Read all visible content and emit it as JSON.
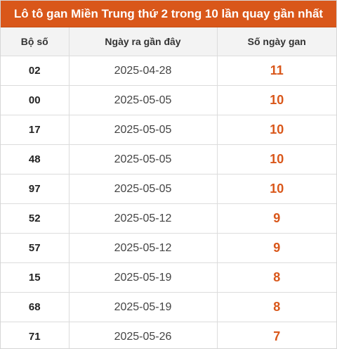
{
  "title": "Lô tô gan Miền Trung thứ 2 trong 10 lần quay gần nhất",
  "colors": {
    "header_bg": "#d9571a",
    "highlight": "#d9571a"
  },
  "table": {
    "headers": [
      "Bộ số",
      "Ngày ra gần đây",
      "Số ngày gan"
    ],
    "rows": [
      {
        "number": "02",
        "date": "2025-04-28",
        "days": "11"
      },
      {
        "number": "00",
        "date": "2025-05-05",
        "days": "10"
      },
      {
        "number": "17",
        "date": "2025-05-05",
        "days": "10"
      },
      {
        "number": "48",
        "date": "2025-05-05",
        "days": "10"
      },
      {
        "number": "97",
        "date": "2025-05-05",
        "days": "10"
      },
      {
        "number": "52",
        "date": "2025-05-12",
        "days": "9"
      },
      {
        "number": "57",
        "date": "2025-05-12",
        "days": "9"
      },
      {
        "number": "15",
        "date": "2025-05-19",
        "days": "8"
      },
      {
        "number": "68",
        "date": "2025-05-19",
        "days": "8"
      },
      {
        "number": "71",
        "date": "2025-05-26",
        "days": "7"
      }
    ]
  }
}
